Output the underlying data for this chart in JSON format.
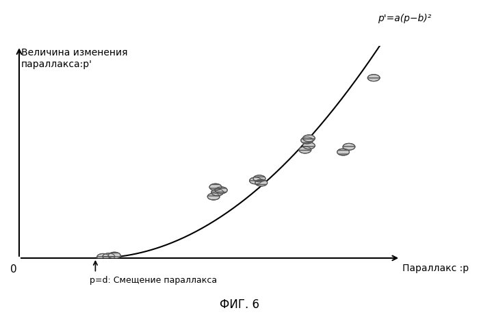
{
  "title": "ФИГ. 6",
  "ylabel": "Величина изменения\nпараллакса:p'",
  "xlabel": "Параллакс :p",
  "annotation_text": "p=d: Смещение параллакса",
  "curve_label": "p'=a(p−b)²",
  "background_color": "#ffffff",
  "curve_color": "#000000",
  "scatter_color": "#aaaaaa",
  "scatter_edge_color": "#555555",
  "xlim": [
    0,
    10
  ],
  "ylim": [
    0,
    10
  ],
  "a": 0.18,
  "b": 2.0,
  "scatter_points": [
    [
      2.2,
      0.05
    ],
    [
      2.35,
      0.07
    ],
    [
      2.5,
      0.12
    ],
    [
      5.1,
      2.9
    ],
    [
      5.2,
      3.1
    ],
    [
      5.3,
      3.2
    ],
    [
      5.15,
      3.35
    ],
    [
      6.2,
      3.65
    ],
    [
      6.3,
      3.75
    ],
    [
      6.35,
      3.55
    ],
    [
      7.5,
      5.1
    ],
    [
      7.6,
      5.3
    ],
    [
      7.55,
      5.55
    ],
    [
      7.6,
      5.65
    ],
    [
      8.5,
      5.0
    ],
    [
      8.65,
      5.25
    ],
    [
      9.3,
      8.5
    ]
  ]
}
